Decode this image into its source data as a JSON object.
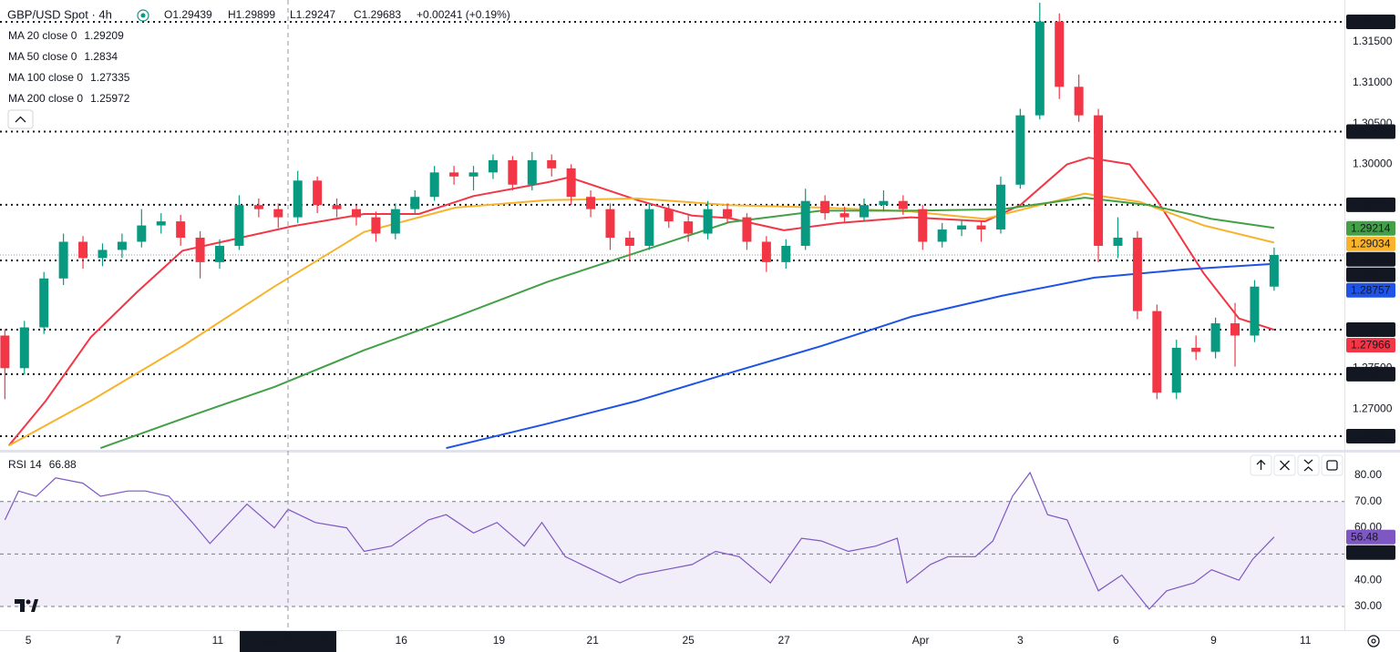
{
  "chart_data": [
    {
      "type": "candlestick",
      "title": "GBP/USD Spot · 4h",
      "ohlc_labels": [
        "O1.29439",
        "H1.29899",
        "L1.29247",
        "C1.29683"
      ],
      "change": "+0.00241 (+0.19%)",
      "up_color": "#089981",
      "down_color": "#f23645",
      "candles": [
        [
          1.279,
          1.2798,
          1.2712,
          1.275
        ],
        [
          1.275,
          1.2808,
          1.2742,
          1.28
        ],
        [
          1.28,
          1.2868,
          1.2792,
          1.286
        ],
        [
          1.286,
          1.2915,
          1.2852,
          1.2905
        ],
        [
          1.2905,
          1.2912,
          1.2872,
          1.2885
        ],
        [
          1.2885,
          1.2903,
          1.2875,
          1.2895
        ],
        [
          1.2895,
          1.2915,
          1.2885,
          1.2905
        ],
        [
          1.2905,
          1.2945,
          1.2898,
          1.2925
        ],
        [
          1.2925,
          1.294,
          1.2915,
          1.293
        ],
        [
          1.293,
          1.2938,
          1.29,
          1.291
        ],
        [
          1.291,
          1.2918,
          1.286,
          1.288
        ],
        [
          1.288,
          1.2908,
          1.2872,
          1.29
        ],
        [
          1.29,
          1.2962,
          1.2895,
          1.295
        ],
        [
          1.295,
          1.2958,
          1.2935,
          1.2945
        ],
        [
          1.2945,
          1.2952,
          1.2922,
          1.2935
        ],
        [
          1.2935,
          1.2992,
          1.2928,
          1.298
        ],
        [
          1.298,
          1.2985,
          1.294,
          1.295
        ],
        [
          1.295,
          1.2958,
          1.2935,
          1.2945
        ],
        [
          1.2945,
          1.295,
          1.2925,
          1.2935
        ],
        [
          1.2935,
          1.2942,
          1.2905,
          1.2915
        ],
        [
          1.2915,
          1.2952,
          1.2908,
          1.2945
        ],
        [
          1.2945,
          1.2968,
          1.2938,
          1.296
        ],
        [
          1.296,
          1.2998,
          1.2955,
          1.299
        ],
        [
          1.299,
          1.2998,
          1.2975,
          1.2985
        ],
        [
          1.2985,
          1.2998,
          1.2968,
          1.299
        ],
        [
          1.299,
          1.3012,
          1.2982,
          1.3005
        ],
        [
          1.3005,
          1.301,
          1.2968,
          1.2975
        ],
        [
          1.2975,
          1.3015,
          1.2968,
          1.3005
        ],
        [
          1.3005,
          1.3012,
          1.2985,
          1.2995
        ],
        [
          1.2995,
          1.3,
          1.295,
          1.296
        ],
        [
          1.296,
          1.2968,
          1.2935,
          1.2945
        ],
        [
          1.2945,
          1.2952,
          1.2895,
          1.291
        ],
        [
          1.291,
          1.2918,
          1.2882,
          1.29
        ],
        [
          1.29,
          1.2952,
          1.2895,
          1.2945
        ],
        [
          1.2945,
          1.295,
          1.2922,
          1.293
        ],
        [
          1.293,
          1.2938,
          1.2905,
          1.2915
        ],
        [
          1.2915,
          1.2955,
          1.2908,
          1.2945
        ],
        [
          1.2945,
          1.2952,
          1.2928,
          1.2935
        ],
        [
          1.2935,
          1.294,
          1.2895,
          1.2905
        ],
        [
          1.2905,
          1.2912,
          1.2868,
          1.288
        ],
        [
          1.288,
          1.2908,
          1.2872,
          1.29
        ],
        [
          1.29,
          1.297,
          1.2895,
          1.2955
        ],
        [
          1.2955,
          1.2962,
          1.2932,
          1.294
        ],
        [
          1.294,
          1.2948,
          1.2928,
          1.2935
        ],
        [
          1.2935,
          1.2958,
          1.293,
          1.295
        ],
        [
          1.295,
          1.2968,
          1.2942,
          1.2955
        ],
        [
          1.2955,
          1.2962,
          1.2938,
          1.2945
        ],
        [
          1.2945,
          1.295,
          1.2895,
          1.2905
        ],
        [
          1.2905,
          1.2928,
          1.2898,
          1.292
        ],
        [
          1.292,
          1.2932,
          1.2912,
          1.2925
        ],
        [
          1.2925,
          1.293,
          1.2905,
          1.292
        ],
        [
          1.292,
          1.2985,
          1.2915,
          1.2975
        ],
        [
          1.2975,
          1.3068,
          1.297,
          1.306
        ],
        [
          1.306,
          1.3198,
          1.3055,
          1.3175
        ],
        [
          1.3175,
          1.3185,
          1.308,
          1.3095
        ],
        [
          1.3095,
          1.311,
          1.3052,
          1.306
        ],
        [
          1.306,
          1.3068,
          1.288,
          1.29
        ],
        [
          1.29,
          1.2935,
          1.2885,
          1.291
        ],
        [
          1.291,
          1.2918,
          1.281,
          1.282
        ],
        [
          1.282,
          1.2828,
          1.2712,
          1.272
        ],
        [
          1.272,
          1.2785,
          1.2712,
          1.2775
        ],
        [
          1.2775,
          1.279,
          1.276,
          1.277
        ],
        [
          1.277,
          1.2812,
          1.2762,
          1.2805
        ],
        [
          1.2805,
          1.283,
          1.2752,
          1.279
        ],
        [
          1.279,
          1.2858,
          1.2782,
          1.285
        ],
        [
          1.285,
          1.2898,
          1.2845,
          1.28888
        ]
      ],
      "series": [
        {
          "name": "MA 20 close 0",
          "value": 1.29209,
          "color": "#f23645",
          "x": [
            0.2,
            2.1,
            4.4,
            6.8,
            9.1,
            11.9,
            14.7,
            18.4,
            21.2,
            24.0,
            27.8,
            28.9,
            32.4,
            35.2,
            37.1,
            39.9,
            42.7,
            46.4,
            50.2,
            52.0,
            54.4,
            55.5,
            57.6,
            59.0,
            61.4,
            63.2,
            65.0
          ],
          "values": [
            1.2655,
            1.271,
            1.2788,
            1.2844,
            1.2894,
            1.2909,
            1.2924,
            1.2939,
            1.2939,
            1.2961,
            1.2978,
            1.2984,
            1.2956,
            1.2937,
            1.2934,
            1.2919,
            1.2928,
            1.2935,
            1.293,
            1.295,
            1.3,
            1.3008,
            1.3,
            1.2956,
            1.2866,
            1.2811,
            1.2797
          ]
        },
        {
          "name": "MA 50 close 0",
          "value": 1.2834,
          "color": "#f7b32b",
          "x": [
            0.2,
            4.4,
            9.1,
            13.8,
            18.4,
            23.1,
            27.8,
            32.4,
            37.1,
            41.8,
            46.4,
            50.2,
            53.0,
            55.3,
            58.1,
            61.4,
            65.0
          ],
          "values": [
            1.2655,
            1.271,
            1.2777,
            1.285,
            1.2917,
            1.2947,
            1.2956,
            1.2958,
            1.295,
            1.2947,
            1.2942,
            1.2933,
            1.295,
            1.2964,
            1.2954,
            1.2925,
            1.2904
          ]
        },
        {
          "name": "MA 100 close 0",
          "value": 1.27335,
          "color": "#43a047",
          "x": [
            4.9,
            9.1,
            13.8,
            18.4,
            23.1,
            27.8,
            32.4,
            37.1,
            41.8,
            46.4,
            51.1,
            55.3,
            58.6,
            61.8,
            65.0
          ],
          "values": [
            1.2652,
            1.2688,
            1.2727,
            1.2772,
            1.2813,
            1.2856,
            1.2892,
            1.2929,
            1.2943,
            1.2943,
            1.2945,
            1.2959,
            1.295,
            1.2933,
            1.2922
          ]
        },
        {
          "name": "MA 200 close 0",
          "value": 1.25972,
          "color": "#1e53e5",
          "x": [
            22.6,
            27.8,
            32.4,
            37.1,
            41.8,
            46.4,
            51.1,
            55.8,
            60.4,
            65.0
          ],
          "values": [
            1.2652,
            1.2682,
            1.271,
            1.2744,
            1.2777,
            1.2813,
            1.2839,
            1.2861,
            1.2871,
            1.2878
          ]
        }
      ],
      "xlim": [
        -0.25,
        68.6
      ],
      "ylim": [
        1.26521,
        1.32014
      ],
      "yticks": [
        {
          "value": 1.315,
          "label": "1.31500"
        },
        {
          "value": 1.31,
          "label": "1.31000"
        },
        {
          "value": 1.305,
          "label": "1.30500"
        },
        {
          "value": 1.3,
          "label": "1.30000"
        },
        {
          "value": 1.275,
          "label": "1.27500"
        },
        {
          "value": 1.27,
          "label": "1.27000"
        }
      ],
      "xticks": [
        {
          "value": 1.2,
          "label": "5"
        },
        {
          "value": 5.8,
          "label": "7"
        },
        {
          "value": 10.9,
          "label": "11"
        },
        {
          "value": 20.3,
          "label": "16"
        },
        {
          "value": 25.3,
          "label": "19"
        },
        {
          "value": 30.1,
          "label": "21"
        },
        {
          "value": 35.0,
          "label": "25"
        },
        {
          "value": 39.9,
          "label": "27"
        },
        {
          "value": 46.9,
          "label": "Apr"
        },
        {
          "value": 52.0,
          "label": "3"
        },
        {
          "value": 56.9,
          "label": "6"
        },
        {
          "value": 61.9,
          "label": "9"
        },
        {
          "value": 66.6,
          "label": "11"
        }
      ],
      "crosshair": {
        "value": 14.5,
        "label": "12 Mar '25   12:00"
      },
      "levels": [
        1.31746,
        1.30401,
        1.29504,
        1.28821,
        1.27972,
        1.27427,
        1.26666
      ],
      "last_price": 1.28888,
      "price_labels": [
        {
          "value": 1.31746,
          "color": "#131722"
        },
        {
          "value": 1.30401,
          "color": "#131722"
        },
        {
          "value": 1.29504,
          "color": "#131722"
        },
        {
          "value": 1.29214,
          "color": "#43a047"
        },
        {
          "value": 1.29034,
          "color": "#f7b32b"
        },
        {
          "value": 1.28888,
          "color": "#131722"
        },
        {
          "value": 1.28821,
          "color": "#131722"
        },
        {
          "value": 1.28757,
          "color": "#1e53e5"
        },
        {
          "value": 1.27972,
          "color": "#131722"
        },
        {
          "value": 1.27966,
          "color": "#f23645"
        },
        {
          "value": 1.27427,
          "color": "#131722"
        },
        {
          "value": 1.26666,
          "color": "#131722"
        }
      ]
    },
    {
      "type": "line",
      "title": "RSI 14",
      "value": 66.88,
      "color": "#7e57c2",
      "x": [
        0,
        0.7,
        1.6,
        2.6,
        4.0,
        4.9,
        6.3,
        7.2,
        8.4,
        9.6,
        10.5,
        12.4,
        13.8,
        14.5,
        15.9,
        17.5,
        18.4,
        19.8,
        21.7,
        22.6,
        24.0,
        25.2,
        26.6,
        27.5,
        28.7,
        30.1,
        31.5,
        32.4,
        33.8,
        35.2,
        36.4,
        37.6,
        39.2,
        40.8,
        41.8,
        43.2,
        44.6,
        45.7,
        46.2,
        47.4,
        48.3,
        49.7,
        50.6,
        51.6,
        52.5,
        53.4,
        54.4,
        55.1,
        56.0,
        57.2,
        58.6,
        59.5,
        60.9,
        61.8,
        63.2,
        63.9,
        65.0
      ],
      "values": [
        63,
        74,
        72,
        79,
        77,
        72,
        74,
        74,
        72,
        62,
        54,
        69,
        60,
        67,
        62,
        60,
        51,
        53,
        63,
        65,
        58,
        62,
        53,
        62,
        49,
        44,
        39,
        42,
        44,
        46,
        51,
        49,
        39,
        56,
        55,
        51,
        53,
        56,
        39,
        46,
        49,
        49,
        55,
        72,
        81,
        65,
        63,
        51,
        36,
        42,
        29,
        36,
        39,
        44,
        40,
        48,
        56.48
      ],
      "ylim": [
        21,
        87.6
      ],
      "yticks": [
        {
          "value": 80,
          "label": "80.00"
        },
        {
          "value": 70,
          "label": "70.00"
        },
        {
          "value": 60,
          "label": "60.00"
        },
        {
          "value": 40,
          "label": "40.00"
        },
        {
          "value": 30,
          "label": "30.00"
        }
      ],
      "band": [
        30,
        70
      ],
      "midline": 50,
      "price_labels": [
        {
          "value": 56.48,
          "color": "#7e57c2"
        },
        {
          "value": 51.12,
          "color": "#131722"
        }
      ]
    }
  ]
}
